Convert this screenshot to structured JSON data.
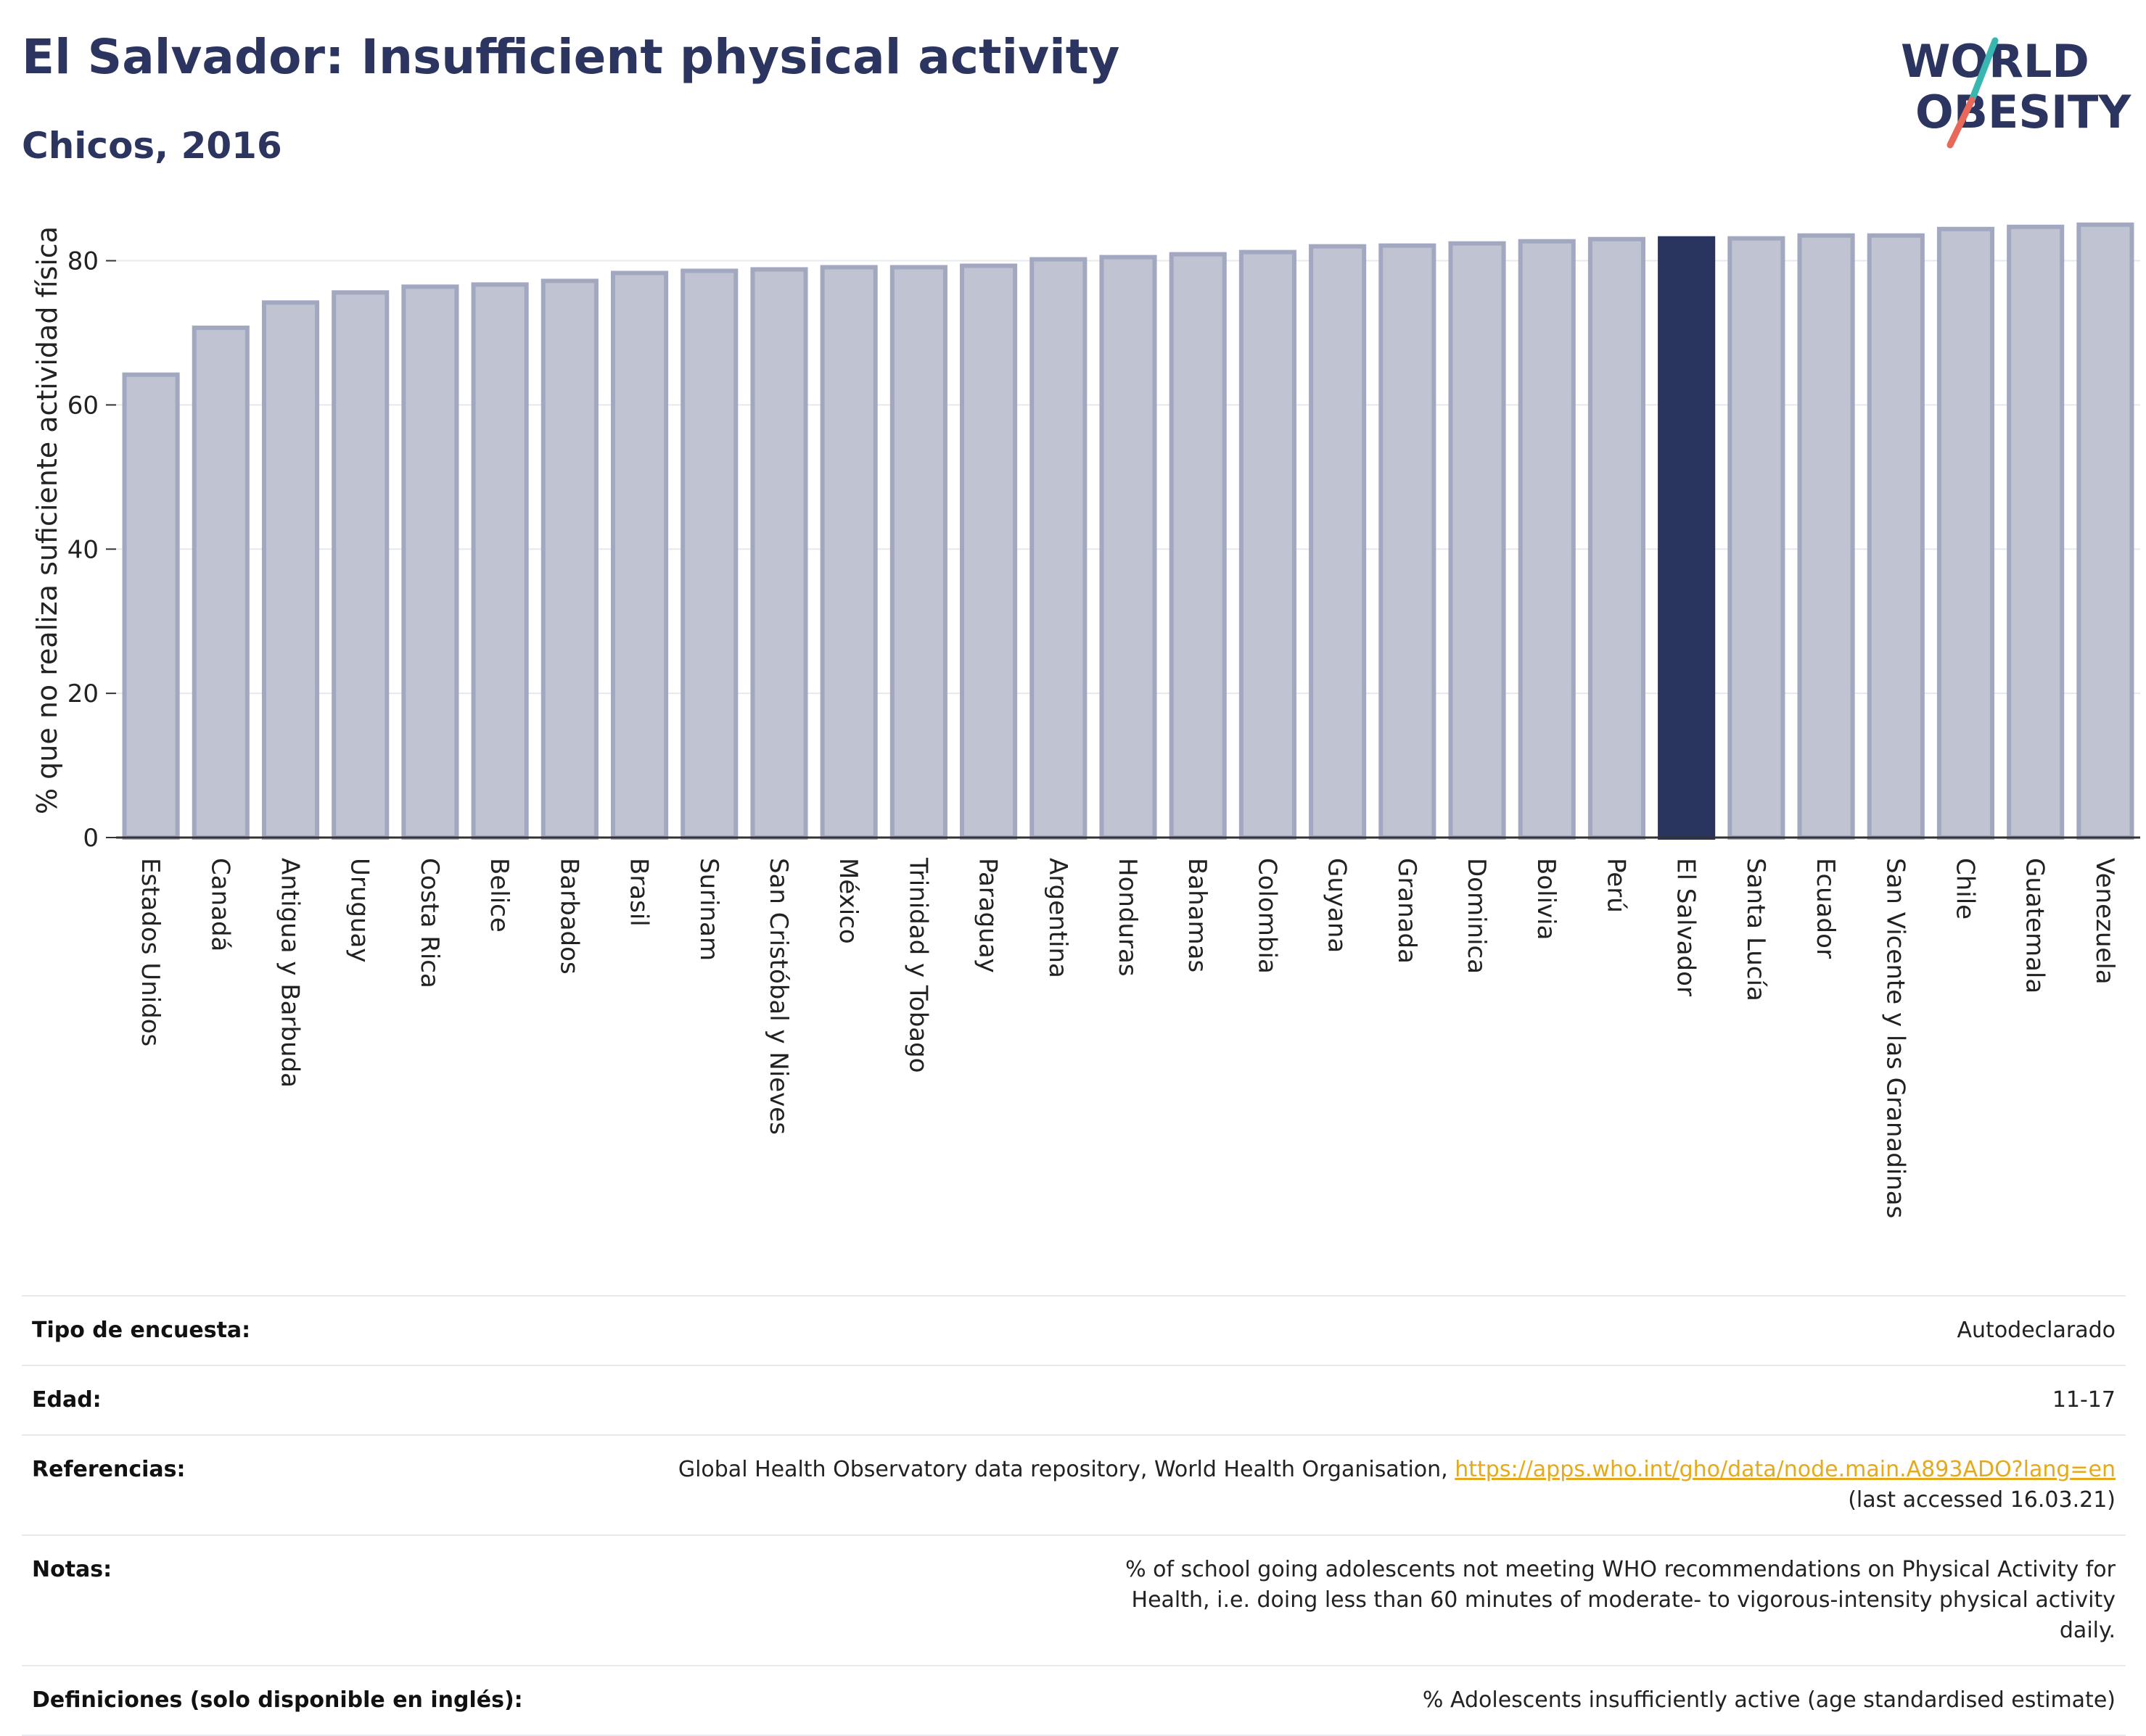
{
  "header": {
    "title": "El Salvador: Insufficient physical activity",
    "subtitle": "Chicos, 2016"
  },
  "logo": {
    "line1": "WORLD",
    "line2": "OBESITY"
  },
  "colors": {
    "title": "#2b3560",
    "bar": "#c0c3d1",
    "bar_border": "#a3a8c1",
    "highlight": "#2a355f",
    "link": "#e5a91c"
  },
  "chart_data": {
    "type": "bar",
    "ylabel": "% que no realiza suficiente actividad física",
    "ylim": [
      0,
      88
    ],
    "yticks": [
      0,
      20,
      40,
      60,
      80
    ],
    "grid": true,
    "highlight": "El Salvador",
    "categories": [
      "Estados Unidos",
      "Canadá",
      "Antigua y Barbuda",
      "Uruguay",
      "Costa Rica",
      "Belice",
      "Barbados",
      "Brasil",
      "Surinam",
      "San Cristóbal y Nieves",
      "México",
      "Trinidad y Tobago",
      "Paraguay",
      "Argentina",
      "Honduras",
      "Bahamas",
      "Colombia",
      "Guyana",
      "Granada",
      "Dominica",
      "Bolivia",
      "Perú",
      "El Salvador",
      "Santa Lucía",
      "Ecuador",
      "San Vicente y las Granadinas",
      "Chile",
      "Guatemala",
      "Venezuela"
    ],
    "values": [
      64.2,
      70.7,
      74.2,
      75.6,
      76.4,
      76.7,
      77.2,
      78.3,
      78.6,
      78.8,
      79.1,
      79.1,
      79.3,
      80.2,
      80.5,
      80.9,
      81.2,
      82.0,
      82.1,
      82.4,
      82.7,
      83.0,
      83.1,
      83.1,
      83.5,
      83.5,
      84.4,
      84.7,
      85.0
    ]
  },
  "info_table": [
    {
      "label": "Tipo de encuesta:",
      "value": "Autodeclarado"
    },
    {
      "label": "Edad:",
      "value": "11-17"
    },
    {
      "label": "Referencias:",
      "value": "Global Health Observatory data repository, World Health Organisation,",
      "link": "https://apps.who.int/gho/data/node.main.A893ADO?lang=en",
      "value2": "(last accessed 16.03.21)"
    },
    {
      "label": "Notas:",
      "value": "% of school going adolescents not meeting WHO recommendations on Physical Activity for Health, i.e. doing less than 60 minutes of moderate- to vigorous-intensity physical activity daily."
    },
    {
      "label": "Definiciones (solo disponible en inglés):",
      "value": "% Adolescents insufficiently active (age standardised estimate)"
    }
  ]
}
